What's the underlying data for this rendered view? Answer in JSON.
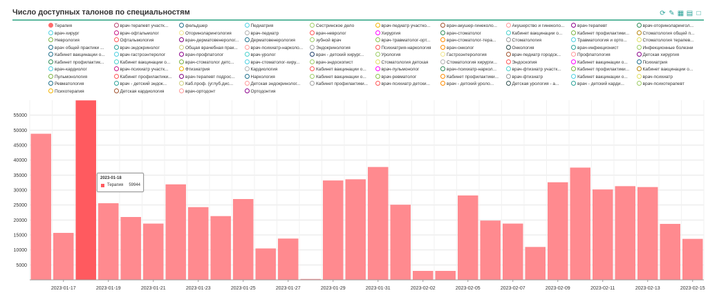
{
  "header": {
    "title": "Число доступных талонов по специальностям"
  },
  "toolbar": {
    "icons": [
      "refresh-icon",
      "edit-icon",
      "table-icon",
      "export-excel-icon",
      "export-file-icon"
    ]
  },
  "colors": {
    "accent": "#5cb89f",
    "bar": "#ff8a8f",
    "bar_hover": "#ff5a5f",
    "grid": "#e6e6e6"
  },
  "legend": {
    "items": [
      {
        "label": "Терапия",
        "color": "#ff6b6b",
        "filled": true
      },
      {
        "label": "врач-терапевт участк...",
        "color": "#b5446e"
      },
      {
        "label": "фельдшер",
        "color": "#1f6f8b"
      },
      {
        "label": "Педиатрия",
        "color": "#4dd0e1"
      },
      {
        "label": "Сестринское дело",
        "color": "#9ccc65"
      },
      {
        "label": "врач-педиатр участко...",
        "color": "#f4b400"
      },
      {
        "label": "врач-акушер-гинеколо...",
        "color": "#a0522d"
      },
      {
        "label": "Акушерство и гинеколо...",
        "color": "#ff9999"
      },
      {
        "label": "врач-терапевт",
        "color": "#8b008b"
      },
      {
        "label": "врач-оториноларингол...",
        "color": "#2e8b57"
      },
      {
        "label": "врач-хирург",
        "color": "#4dd0e1"
      },
      {
        "label": "врач-офтальмолог",
        "color": "#c71585"
      },
      {
        "label": "Оториноларингология",
        "color": "#f0e68c"
      },
      {
        "label": "врач-педиатр",
        "color": "#b0b0b0"
      },
      {
        "label": "врач-невролог",
        "color": "#ff5555"
      },
      {
        "label": "Хирургия",
        "color": "#ff00ff"
      },
      {
        "label": "врач-стоматолог",
        "color": "#2e8b57"
      },
      {
        "label": "Кабинет вакцинации о...",
        "color": "#48d1cc"
      },
      {
        "label": "Кабинет профилактики...",
        "color": "#7cb342"
      },
      {
        "label": "Стоматология общей п...",
        "color": "#b8860b"
      },
      {
        "label": "Неврология",
        "color": "#7cb342"
      },
      {
        "label": "Офтальмология",
        "color": "#ff5555"
      },
      {
        "label": "врач-дерматовенеролог...",
        "color": "#800080"
      },
      {
        "label": "Дерматовенерология",
        "color": "#1f6f8b"
      },
      {
        "label": "зубной врач",
        "color": "#9ccc65"
      },
      {
        "label": "врач-травматолог-орт...",
        "color": "#8bc34a"
      },
      {
        "label": "врач-стоматолог-тера...",
        "color": "#ff8c00"
      },
      {
        "label": "Стоматология",
        "color": "#999999"
      },
      {
        "label": "Травматология и орто...",
        "color": "#4dd0e1"
      },
      {
        "label": "Стоматология терапев...",
        "color": "#e0e060"
      },
      {
        "label": "врач общей практики ...",
        "color": "#1f6f8b"
      },
      {
        "label": "врач-эндокринолог",
        "color": "#2aa198"
      },
      {
        "label": "Общая врачебная прак...",
        "color": "#cfcf80"
      },
      {
        "label": "врач-психиатр-нарколо...",
        "color": "#ff9999"
      },
      {
        "label": "Эндокринология",
        "color": "#a0a0a0"
      },
      {
        "label": "Психиатрия-наркология",
        "color": "#ff5555"
      },
      {
        "label": "врач-онколог",
        "color": "#ff8c00"
      },
      {
        "label": "Онкология",
        "color": "#2f4f4f"
      },
      {
        "label": "врач-инфекционист",
        "color": "#2aa198"
      },
      {
        "label": "Инфекционные болезни",
        "color": "#9ccc65"
      },
      {
        "label": "Кабинет вакцинации о...",
        "color": "#1f6f8b"
      },
      {
        "label": "врач-гастроэнтеролог",
        "color": "#4dd0e1"
      },
      {
        "label": "врач-профпатолог",
        "color": "#8b008b"
      },
      {
        "label": "врач-уролог",
        "color": "#48d1cc"
      },
      {
        "label": "врач - детский хирург...",
        "color": "#1f3f6b"
      },
      {
        "label": "Урология",
        "color": "#9ccc65"
      },
      {
        "label": "Гастроэнтерология",
        "color": "#f0e68c"
      },
      {
        "label": "врач-педиатр городск...",
        "color": "#a0522d"
      },
      {
        "label": "Профпатология",
        "color": "#ff9999"
      },
      {
        "label": "Детская хирургия",
        "color": "#8b008b"
      },
      {
        "label": "Кабинет профилактик...",
        "color": "#2e8b57"
      },
      {
        "label": "Кабинет вакцинации о...",
        "color": "#48d1cc"
      },
      {
        "label": "врач-стоматолог детс...",
        "color": "#7cb342"
      },
      {
        "label": "врач-стоматолог-хиру...",
        "color": "#4dd0e1"
      },
      {
        "label": "врач-эндоскопист",
        "color": "#9ccc65"
      },
      {
        "label": "Стоматология детская",
        "color": "#e0e060"
      },
      {
        "label": "Стоматология хирурги...",
        "color": "#b0b0b0"
      },
      {
        "label": "Эндоскопия",
        "color": "#ff5555"
      },
      {
        "label": "Кабинет вакцинации о...",
        "color": "#ff00ff"
      },
      {
        "label": "Психиатрия",
        "color": "#1f6f8b"
      },
      {
        "label": "врач-кардиолог",
        "color": "#4dd0e1"
      },
      {
        "label": "врач-психиатр участк...",
        "color": "#c71585"
      },
      {
        "label": "Фтизиатрия",
        "color": "#f4b400"
      },
      {
        "label": "Кардиология",
        "color": "#b0b0b0"
      },
      {
        "label": "Кабинет вакцинации о...",
        "color": "#ff5555"
      },
      {
        "label": "врач-пульмонолог",
        "color": "#ff00ff"
      },
      {
        "label": "врач-психиатр-наркол...",
        "color": "#2e8b57"
      },
      {
        "label": "врач-фтизиатр участк...",
        "color": "#48d1cc"
      },
      {
        "label": "Кабинет профилактики...",
        "color": "#7cb342"
      },
      {
        "label": "Кабинет вакцинации о...",
        "color": "#b8860b"
      },
      {
        "label": "Пульмонология",
        "color": "#7cb342"
      },
      {
        "label": "Кабинет профилактики...",
        "color": "#ff5555"
      },
      {
        "label": "врач-терапевт подрос...",
        "color": "#800080"
      },
      {
        "label": "Наркология",
        "color": "#1f6f8b"
      },
      {
        "label": "Кабинет вакцинации о...",
        "color": "#9ccc65"
      },
      {
        "label": "врач-ревматолог",
        "color": "#8bc34a"
      },
      {
        "label": "Кабинет профилактики...",
        "color": "#ff8c00"
      },
      {
        "label": "врач-фтизиатр",
        "color": "#999999"
      },
      {
        "label": "Кабинет вакцинации о...",
        "color": "#4dd0e1"
      },
      {
        "label": "врач-психиатр",
        "color": "#e0e060"
      },
      {
        "label": "Ревматология",
        "color": "#1f6f8b"
      },
      {
        "label": "врач - детский эндок...",
        "color": "#2aa198"
      },
      {
        "label": "Каб.проф. (углуб.дис...",
        "color": "#cfcf80"
      },
      {
        "label": "Детская эндокринолог...",
        "color": "#ff9999"
      },
      {
        "label": "Кабинет профилактики...",
        "color": "#a0a0a0"
      },
      {
        "label": "врач-психиатр детски...",
        "color": "#ff5555"
      },
      {
        "label": "врач - детский уроло...",
        "color": "#ff8c00"
      },
      {
        "label": "Детская урология - а...",
        "color": "#2f4f4f"
      },
      {
        "label": "врач - детский карди...",
        "color": "#2aa198"
      },
      {
        "label": "врач-психотерапевт",
        "color": "#9ccc65"
      },
      {
        "label": "Психотерапия",
        "color": "#f4b400"
      },
      {
        "label": "Детская кардиология",
        "color": "#a0522d"
      },
      {
        "label": "врач-ортодонт",
        "color": "#ff9999"
      },
      {
        "label": "Ортодонтия",
        "color": "#8b008b"
      }
    ]
  },
  "tooltip": {
    "date": "2023-01-18",
    "series": "Терапия",
    "value": "59944"
  },
  "chart_data": {
    "type": "bar",
    "title": "Число доступных талонов по специальностям",
    "series_name": "Терапия",
    "categories": [
      "2023-01-16",
      "2023-01-17",
      "2023-01-18",
      "2023-01-19",
      "2023-01-20",
      "2023-01-21",
      "2023-01-22",
      "2023-01-23",
      "2023-01-24",
      "2023-01-25",
      "2023-01-26",
      "2023-01-27",
      "2023-01-28",
      "2023-01-29",
      "2023-01-30",
      "2023-01-31",
      "2023-02-01",
      "2023-02-02",
      "2023-02-03",
      "2023-02-05",
      "2023-02-06",
      "2023-02-07",
      "2023-02-08",
      "2023-02-09",
      "2023-02-10",
      "2023-02-11",
      "2023-02-12",
      "2023-02-13",
      "2023-02-14",
      "2023-02-15"
    ],
    "values": [
      48800,
      15700,
      59944,
      25600,
      21000,
      18800,
      31900,
      24300,
      21300,
      27000,
      10500,
      13800,
      300,
      33200,
      33600,
      37700,
      25100,
      3000,
      3000,
      28200,
      19800,
      18800,
      11000,
      32600,
      37500,
      30200,
      31300,
      31000,
      18700,
      13700
    ],
    "tick_labels": [
      "2023-01-17",
      "2023-01-19",
      "2023-01-21",
      "2023-01-23",
      "2023-01-25",
      "2023-01-27",
      "2023-01-29",
      "2023-01-31",
      "2023-02-02",
      "2023-02-05",
      "2023-02-07",
      "2023-02-09",
      "2023-02-11",
      "2023-02-13",
      "2023-02-15"
    ],
    "yticks": [
      5000,
      10000,
      15000,
      20000,
      25000,
      30000,
      35000,
      40000,
      45000,
      50000,
      55000
    ],
    "ylim": [
      0,
      60000
    ],
    "highlight_index": 2
  }
}
